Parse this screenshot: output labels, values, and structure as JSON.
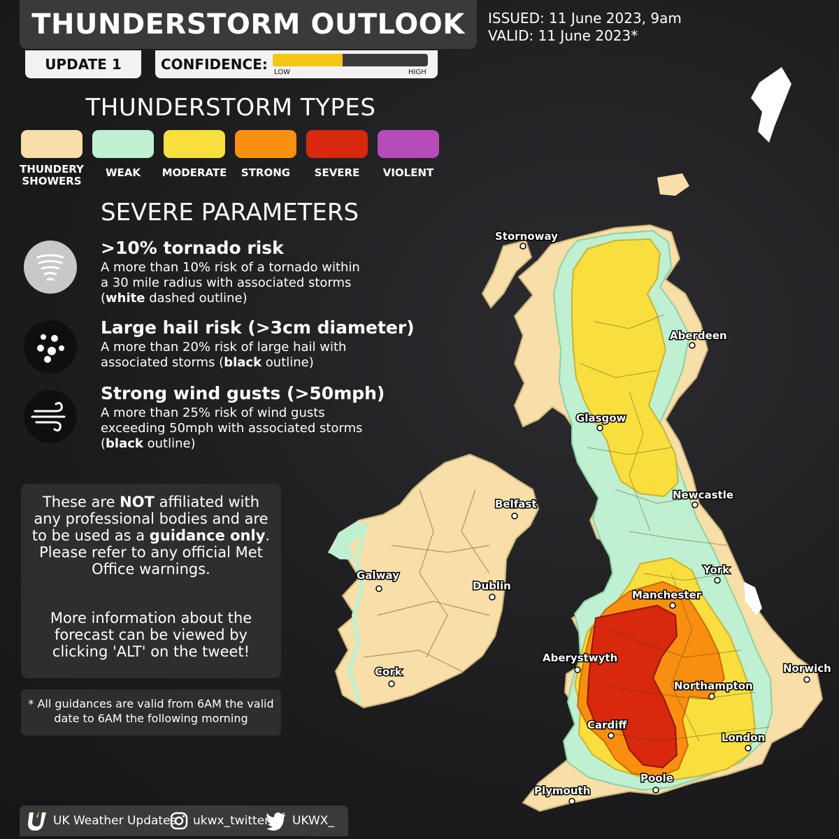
{
  "header": {
    "title": "THUNDERSTORM OUTLOOK",
    "issued": "ISSUED: 11 June 2023, 9am",
    "valid": "VALID: 11 June 2023*",
    "update": "UPDATE 1",
    "confidence_label": "CONFIDENCE:",
    "confidence_low": "LOW",
    "confidence_high": "HIGH",
    "confidence_level": 0.45
  },
  "legend": {
    "title": "THUNDERSTORM TYPES",
    "types": [
      {
        "label": "THUNDERY SHOWERS",
        "line1": "THUNDERY",
        "line2": "SHOWERS",
        "color": "#f8dfa8"
      },
      {
        "label": "WEAK",
        "line1": "WEAK",
        "line2": "",
        "color": "#bff0d2"
      },
      {
        "label": "MODERATE",
        "line1": "MODERATE",
        "line2": "",
        "color": "#f8df3d"
      },
      {
        "label": "STRONG",
        "line1": "STRONG",
        "line2": "",
        "color": "#f98f10"
      },
      {
        "label": "SEVERE",
        "line1": "SEVERE",
        "line2": "",
        "color": "#d8280d"
      },
      {
        "label": "VIOLENT",
        "line1": "VIOLENT",
        "line2": "",
        "color": "#b64bba"
      }
    ]
  },
  "severe": {
    "title": "SEVERE PARAMETERS",
    "params": [
      {
        "icon": "tornado-icon",
        "heading": ">10% tornado risk",
        "lines": [
          "A more than 10% risk of a tornado within",
          "a 30 mile radius with associated storms"
        ],
        "outline_bold": "white",
        "outline_rest": " dashed outline)"
      },
      {
        "icon": "hail-icon",
        "heading": "Large hail risk (>3cm diameter)",
        "lines": [
          "A more than 20% risk of large hail with",
          "associated storms ("
        ],
        "outline_bold": "black",
        "outline_rest": " outline)"
      },
      {
        "icon": "wind-icon",
        "heading": "Strong wind gusts (>50mph)",
        "lines": [
          "A more than 25% risk of wind gusts",
          "exceeding 50mph with associated storms"
        ],
        "outline_bold": "black",
        "outline_rest": " outline)"
      }
    ]
  },
  "note": {
    "t1": "These are ",
    "b1": "NOT",
    "t2": " affiliated with any professional bodies and are to be used as a ",
    "b2": "guidance only",
    "t3": ". Please refer to any official Met Office warnings.",
    "p2": "More information about the forecast can be viewed by clicking 'ALT' on the tweet!"
  },
  "validity": "* All guidances are valid from 6AM the valid date to 6AM the following morning",
  "footer": {
    "brand": "UK Weather Updates",
    "instagram": "ukwx_twitter",
    "twitter": "UKWX_"
  },
  "cities": {
    "stornoway": "Stornoway",
    "aberdeen": "Aberdeen",
    "glasgow": "Glasgow",
    "belfast": "Belfast",
    "newcastle": "Newcastle",
    "galway": "Galway",
    "dublin": "Dublin",
    "york": "York",
    "manchester": "Manchester",
    "aberystwyth": "Aberystwyth",
    "cork": "Cork",
    "northampton": "Northampton",
    "norwich": "Norwich",
    "cardiff": "Cardiff",
    "london": "London",
    "poole": "Poole",
    "plymouth": "Plymouth"
  }
}
